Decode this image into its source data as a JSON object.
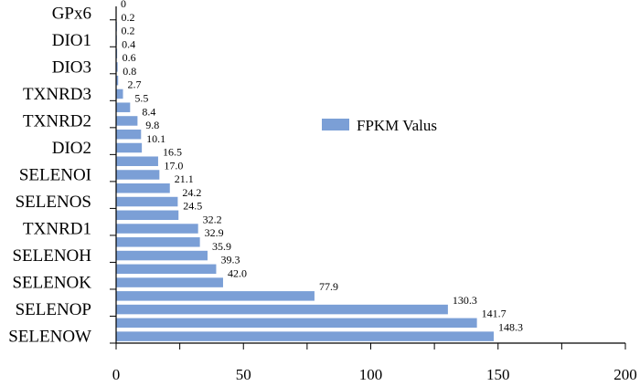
{
  "chart_data": {
    "type": "bar",
    "orientation": "horizontal",
    "legend": {
      "label": "FPKM Valus",
      "color": "#7b9fd6",
      "placement": "upper-right"
    },
    "xlim": [
      0,
      200
    ],
    "x_ticks": [
      0,
      50,
      100,
      150,
      200
    ],
    "bars": [
      {
        "value": 148.3,
        "label": "148.3"
      },
      {
        "value": 141.7,
        "label": "141.7"
      },
      {
        "value": 130.3,
        "label": "130.3"
      },
      {
        "value": 77.9,
        "label": "77.9"
      },
      {
        "value": 42.0,
        "label": "42.0"
      },
      {
        "value": 39.3,
        "label": "39.3"
      },
      {
        "value": 35.9,
        "label": "35.9"
      },
      {
        "value": 32.9,
        "label": "32.9"
      },
      {
        "value": 32.2,
        "label": "32.2"
      },
      {
        "value": 24.5,
        "label": "24.5"
      },
      {
        "value": 24.2,
        "label": "24.2"
      },
      {
        "value": 21.1,
        "label": "21.1"
      },
      {
        "value": 17.0,
        "label": "17.0"
      },
      {
        "value": 16.5,
        "label": "16.5"
      },
      {
        "value": 10.1,
        "label": "10.1"
      },
      {
        "value": 9.8,
        "label": "9.8"
      },
      {
        "value": 8.4,
        "label": "8.4"
      },
      {
        "value": 5.5,
        "label": "5.5"
      },
      {
        "value": 2.7,
        "label": "2.7"
      },
      {
        "value": 0.8,
        "label": "0.8"
      },
      {
        "value": 0.6,
        "label": "0.6"
      },
      {
        "value": 0.4,
        "label": "0.4"
      },
      {
        "value": 0.2,
        "label": "0.2"
      },
      {
        "value": 0.2,
        "label": "0.2"
      },
      {
        "value": 0,
        "label": "0"
      }
    ],
    "category_labels": [
      {
        "text": "SELENOW",
        "bar_index": 0
      },
      {
        "text": "SELENOP",
        "bar_index": 2
      },
      {
        "text": "SELENOK",
        "bar_index": 4
      },
      {
        "text": "SELENOH",
        "bar_index": 6
      },
      {
        "text": "TXNRD1",
        "bar_index": 8
      },
      {
        "text": "SELENOS",
        "bar_index": 10
      },
      {
        "text": "SELENOI",
        "bar_index": 12
      },
      {
        "text": "DIO2",
        "bar_index": 14
      },
      {
        "text": "TXNRD2",
        "bar_index": 16
      },
      {
        "text": "TXNRD3",
        "bar_index": 18
      },
      {
        "text": "DIO3",
        "bar_index": 20
      },
      {
        "text": "DIO1",
        "bar_index": 22
      },
      {
        "text": "GPx6",
        "bar_index": 24
      }
    ]
  }
}
